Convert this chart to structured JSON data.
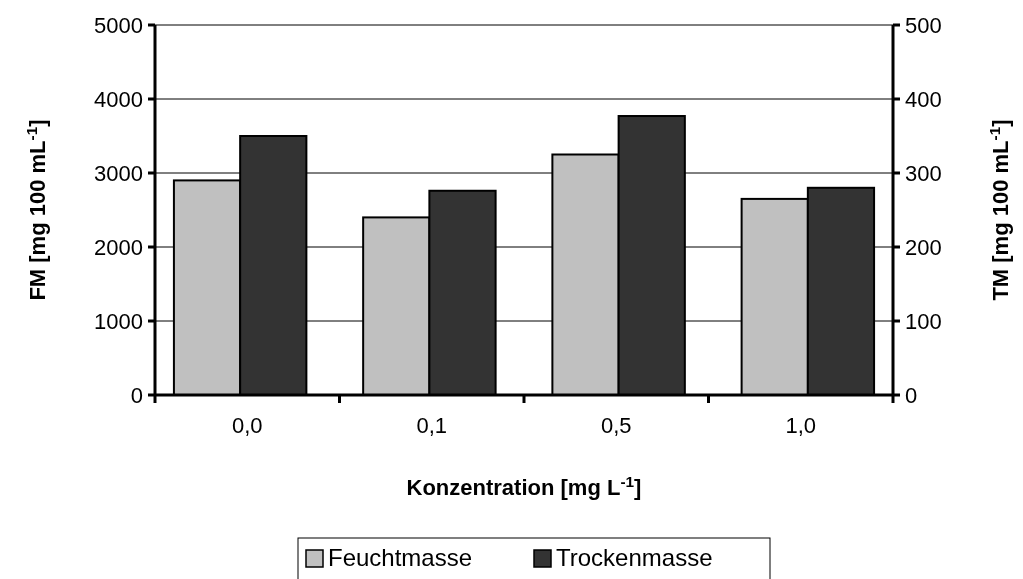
{
  "chart_data": {
    "type": "bar",
    "xlabel": "Konzentration [mg L$^{-1}$]",
    "ylabel": "FM [mg 100 mL$^{-1}$]",
    "y2label": "TM [mg 100 mL$^{-1}$]",
    "categories": [
      "0,0",
      "0,1",
      "0,5",
      "1,0"
    ],
    "series": [
      {
        "name": "Feuchtmasse",
        "color": "#c0c0c0",
        "values": [
          2900,
          2400,
          3250,
          2650
        ]
      },
      {
        "name": "Trockenmasse",
        "color": "#333333",
        "values": [
          350,
          276,
          377,
          280
        ],
        "axis": "y2"
      }
    ],
    "ylim": [
      0,
      5000
    ],
    "yticks": [
      0,
      1000,
      2000,
      3000,
      4000,
      5000
    ],
    "y2lim": [
      0,
      500
    ],
    "y2ticks": [
      0,
      100,
      200,
      300,
      400,
      500
    ],
    "grid": "y",
    "legend": "bottom"
  }
}
